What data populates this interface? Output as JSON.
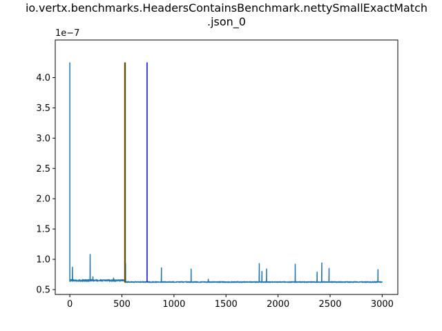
{
  "chart_data": {
    "type": "line",
    "title_line1": "io.vertx.benchmarks.HeadersContainsBenchmark.nettySmallExactMatch",
    "title_line2": ".json_0",
    "xlabel": "",
    "ylabel": "",
    "y_offset_label": "1e−7",
    "xlim": [
      -140,
      3150
    ],
    "ylim": [
      0.42,
      4.62
    ],
    "x_ticks": [
      0,
      500,
      1000,
      1500,
      2000,
      2500,
      3000
    ],
    "x_tick_labels": [
      "0",
      "500",
      "1000",
      "1500",
      "2000",
      "2500",
      "3000"
    ],
    "y_ticks": [
      0.5,
      1.0,
      1.5,
      2.0,
      2.5,
      3.0,
      3.5,
      4.0
    ],
    "y_tick_labels": [
      "0.5",
      "1.0",
      "1.5",
      "2.0",
      "2.5",
      "3.0",
      "3.5",
      "4.0"
    ],
    "grid": false,
    "colors": {
      "series": "#1f77b4",
      "red_line": "#ff0000",
      "green_line": "#008000",
      "blue_line": "#0000ff"
    },
    "vertical_lines": [
      {
        "color": "red",
        "x": 527,
        "y_range": [
          0.62,
          4.25
        ]
      },
      {
        "color": "green",
        "x": 533,
        "y_range": [
          0.62,
          4.25
        ]
      },
      {
        "color": "blue",
        "x": 742,
        "y_range": [
          0.62,
          4.25
        ]
      }
    ],
    "series": [
      {
        "baseline_segments": [
          {
            "x_start": 0,
            "x_end": 530,
            "level": 0.65,
            "noise": 0.03
          },
          {
            "x_start": 530,
            "x_end": 3000,
            "level": 0.625,
            "noise": 0.015
          }
        ],
        "spikes": [
          {
            "x": 0,
            "y": 4.25
          },
          {
            "x": 25,
            "y": 0.87
          },
          {
            "x": 195,
            "y": 1.08
          },
          {
            "x": 222,
            "y": 0.71
          },
          {
            "x": 420,
            "y": 0.69
          },
          {
            "x": 535,
            "y": 0.93
          },
          {
            "x": 880,
            "y": 0.86
          },
          {
            "x": 1165,
            "y": 0.84
          },
          {
            "x": 1330,
            "y": 0.67
          },
          {
            "x": 1820,
            "y": 0.93
          },
          {
            "x": 1845,
            "y": 0.8
          },
          {
            "x": 1890,
            "y": 0.84
          },
          {
            "x": 2165,
            "y": 0.92
          },
          {
            "x": 2375,
            "y": 0.79
          },
          {
            "x": 2420,
            "y": 0.94
          },
          {
            "x": 2490,
            "y": 0.85
          },
          {
            "x": 2960,
            "y": 0.83
          }
        ]
      }
    ]
  }
}
